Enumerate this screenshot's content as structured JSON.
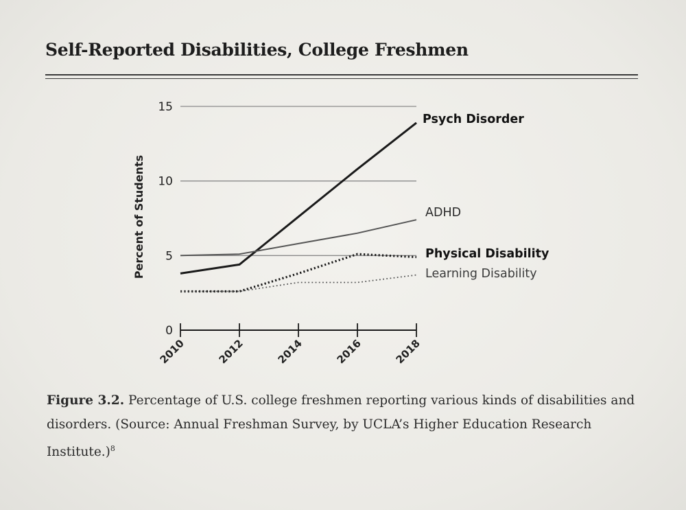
{
  "title": "Self-Reported Disabilities, College Freshmen",
  "caption": {
    "label": "Figure 3.2.",
    "text": " Percentage of U.S. college freshmen reporting various kinds of disabilities and disorders. (Source: Annual Freshman Survey, by UCLA’s Higher Education Research Institute.)",
    "footnote": "8"
  },
  "chart_data": {
    "type": "line",
    "title": "Self-Reported Disabilities, College Freshmen",
    "xlabel": "",
    "ylabel": "Percent of Students",
    "x": [
      2010,
      2012,
      2014,
      2016,
      2018
    ],
    "xticks": [
      "2010",
      "2012",
      "2014",
      "2016",
      "2018"
    ],
    "yticks": [
      "0",
      "5",
      "10",
      "15"
    ],
    "ylim": [
      0,
      15
    ],
    "grid": true,
    "series": [
      {
        "name": "Psych Disorder",
        "style": "solid-thick",
        "color": "#1a1a1a",
        "values": [
          3.8,
          4.4,
          7.6,
          10.8,
          13.9
        ]
      },
      {
        "name": "ADHD",
        "style": "solid",
        "color": "#555555",
        "values": [
          5.0,
          5.1,
          5.8,
          6.5,
          7.4
        ]
      },
      {
        "name": "Physical Disability",
        "style": "dotted-bold",
        "color": "#1a1a1a",
        "values": [
          2.6,
          2.6,
          3.8,
          5.1,
          4.9
        ]
      },
      {
        "name": "Learning Disability",
        "style": "dotted",
        "color": "#555555",
        "values": [
          2.6,
          2.6,
          3.2,
          3.2,
          3.7
        ]
      }
    ]
  }
}
